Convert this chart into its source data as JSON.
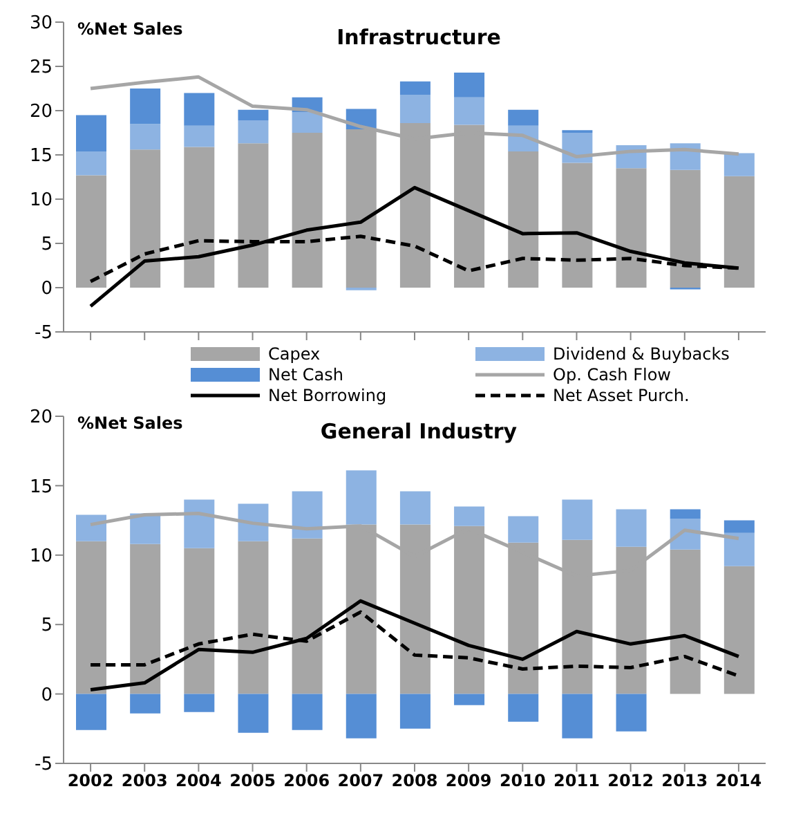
{
  "chart_data": [
    {
      "type": "bar",
      "title": "Infrastructure",
      "ylabel": "%Net Sales",
      "stacked": true,
      "legend": "bottom",
      "tick_labels": "y",
      "categories": [
        "2002",
        "2003",
        "2004",
        "2005",
        "2006",
        "2007",
        "2008",
        "2009",
        "2010",
        "2011",
        "2012",
        "2013",
        "2014"
      ],
      "ylim": [
        -5,
        30
      ],
      "yticks": [
        -5,
        0,
        5,
        10,
        15,
        20,
        25,
        30
      ],
      "series": [
        {
          "name": "Capex",
          "color": "#a6a6a6",
          "values": [
            12.7,
            15.6,
            15.9,
            16.3,
            17.5,
            17.9,
            18.6,
            18.4,
            15.4,
            14.1,
            13.5,
            13.3,
            12.6
          ]
        },
        {
          "name": "Dividend & Buybacks",
          "color": "#8db3e2",
          "values": [
            2.7,
            2.9,
            2.4,
            2.6,
            2.3,
            -0.3,
            3.2,
            3.1,
            2.9,
            3.4,
            2.6,
            3.0,
            2.6
          ]
        },
        {
          "name": "Net Cash",
          "color": "#558ed5",
          "values": [
            4.1,
            4.0,
            3.7,
            1.2,
            1.7,
            2.3,
            1.5,
            2.8,
            1.8,
            0.3,
            null,
            -0.2,
            null
          ]
        },
        {
          "name": "Op. Cash Flow",
          "type": "line",
          "color": "#a6a6a6",
          "line_style": "solid",
          "values": [
            22.5,
            23.2,
            23.8,
            20.5,
            20.1,
            18.2,
            16.8,
            17.5,
            17.2,
            14.8,
            15.4,
            15.6,
            15.1
          ]
        },
        {
          "name": "Net Borrowing",
          "type": "line",
          "color": "#000000",
          "line_style": "solid",
          "values": [
            -2.1,
            3.0,
            3.5,
            4.8,
            6.5,
            7.4,
            11.3,
            8.7,
            6.1,
            6.2,
            4.1,
            2.8,
            2.2
          ]
        },
        {
          "name": "Net Asset Purch.",
          "type": "line",
          "color": "#000000",
          "line_style": "dashed",
          "values": [
            0.7,
            3.8,
            5.3,
            5.2,
            5.2,
            5.8,
            4.7,
            1.9,
            3.3,
            3.1,
            3.3,
            2.5,
            2.2
          ]
        }
      ]
    },
    {
      "type": "bar",
      "title": "General Industry",
      "ylabel": "%Net Sales",
      "stacked": true,
      "categories": [
        "2002",
        "2003",
        "2004",
        "2005",
        "2006",
        "2007",
        "2008",
        "2009",
        "2010",
        "2011",
        "2012",
        "2013",
        "2014"
      ],
      "ylim": [
        -5,
        20
      ],
      "yticks": [
        -5,
        0,
        5,
        10,
        15,
        20
      ],
      "series": [
        {
          "color": "#a6a6a6",
          "values": [
            11.0,
            10.8,
            10.5,
            11.0,
            11.2,
            12.2,
            12.2,
            12.1,
            10.9,
            11.1,
            10.6,
            10.4,
            9.2
          ]
        },
        {
          "color": "#8db3e2",
          "values": [
            1.9,
            2.2,
            3.5,
            2.7,
            3.4,
            3.9,
            2.4,
            1.4,
            1.9,
            2.9,
            2.7,
            2.2,
            2.4
          ]
        },
        {
          "color": "#558ed5",
          "values": [
            -2.6,
            -1.4,
            -1.3,
            -2.8,
            -2.6,
            -3.2,
            -2.5,
            -0.8,
            -2.0,
            -3.2,
            -2.7,
            0.7,
            0.9
          ]
        },
        {
          "type": "line",
          "color": "#a6a6a6",
          "line_style": "solid",
          "values": [
            12.2,
            12.9,
            13.0,
            12.3,
            11.9,
            12.1,
            9.9,
            11.9,
            10.2,
            8.5,
            8.9,
            11.8,
            11.2
          ]
        },
        {
          "type": "line",
          "color": "#000000",
          "line_style": "solid",
          "values": [
            0.3,
            0.8,
            3.2,
            3.0,
            4.0,
            6.7,
            5.1,
            3.5,
            2.5,
            4.5,
            3.6,
            4.2,
            2.7
          ]
        },
        {
          "type": "line",
          "color": "#000000",
          "line_style": "dashed",
          "values": [
            2.1,
            2.1,
            3.6,
            4.3,
            3.8,
            5.9,
            2.8,
            2.6,
            1.8,
            2.0,
            1.9,
            2.7,
            1.3
          ]
        }
      ]
    }
  ]
}
